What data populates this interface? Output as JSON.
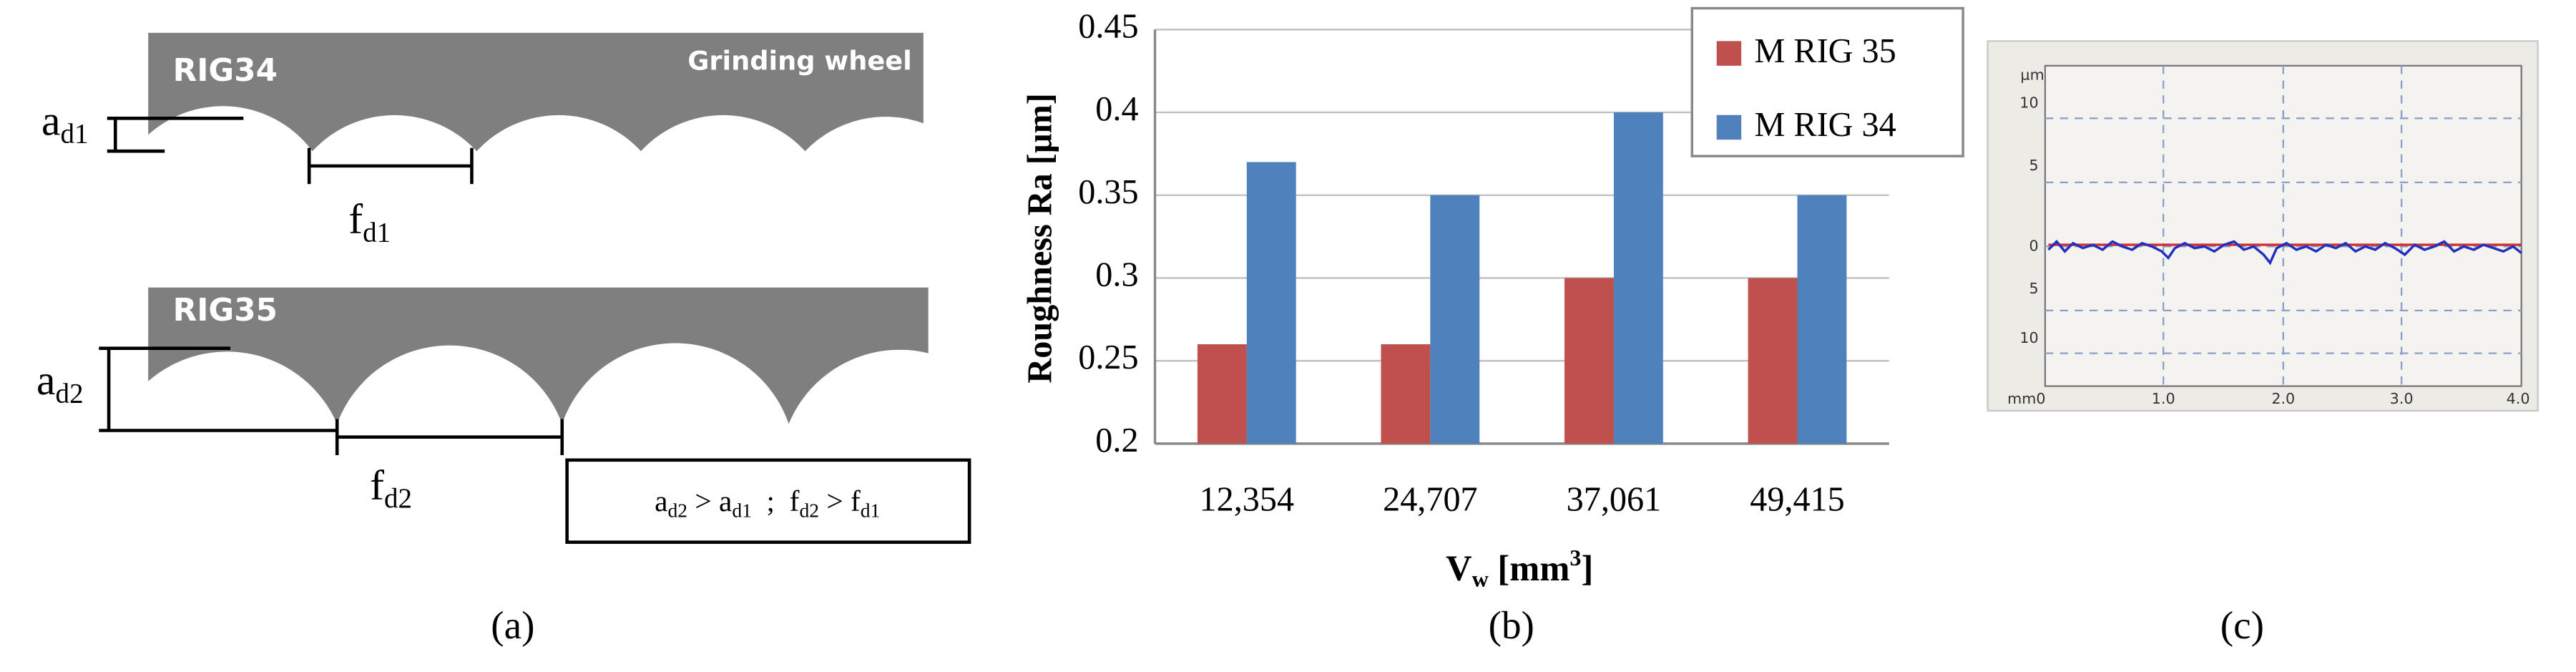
{
  "panel_a": {
    "wheel1": {
      "name": "RIG34",
      "label": "Grinding wheel"
    },
    "depth1": [
      "a",
      "d1"
    ],
    "feed1": [
      "f",
      "d1"
    ],
    "wheel2": {
      "name": "RIG35"
    },
    "depth2": [
      "a",
      "d2"
    ],
    "feed2": [
      "f",
      "d2"
    ],
    "relation": [
      [
        "a",
        "d2"
      ],
      [
        " > a",
        "d1"
      ],
      [
        "  ;  f",
        "d2"
      ],
      [
        " > f",
        "d1"
      ]
    ],
    "caption": "(a)"
  },
  "chart_data": {
    "type": "bar",
    "y_label": "Roughness Ra [µm]",
    "x_label": {
      "main": "V",
      "sub": "w",
      "unit": " [mm",
      "sup": "3",
      "close": "]"
    },
    "categories": [
      "12,354",
      "24,707",
      "37,061",
      "49,415"
    ],
    "series": [
      {
        "name": "M RIG 35",
        "color": "#c0504d",
        "values": [
          0.26,
          0.26,
          0.3,
          0.3
        ]
      },
      {
        "name": "M RIG 34",
        "color": "#4f81bd",
        "values": [
          0.37,
          0.35,
          0.4,
          0.35
        ]
      }
    ],
    "ylim": [
      0.2,
      0.45
    ],
    "yticks": [
      0.2,
      0.25,
      0.3,
      0.35,
      0.4,
      0.45
    ],
    "grid": true,
    "legend": "upper right",
    "caption": "(b)"
  },
  "panel_c": {
    "y_unit": "µm",
    "y_labels": [
      "10",
      "5",
      "0",
      "5",
      "10"
    ],
    "x_labels": [
      "mm0",
      "1.0",
      "2.0",
      "3.0",
      "4.0"
    ],
    "caption": "(c)"
  }
}
